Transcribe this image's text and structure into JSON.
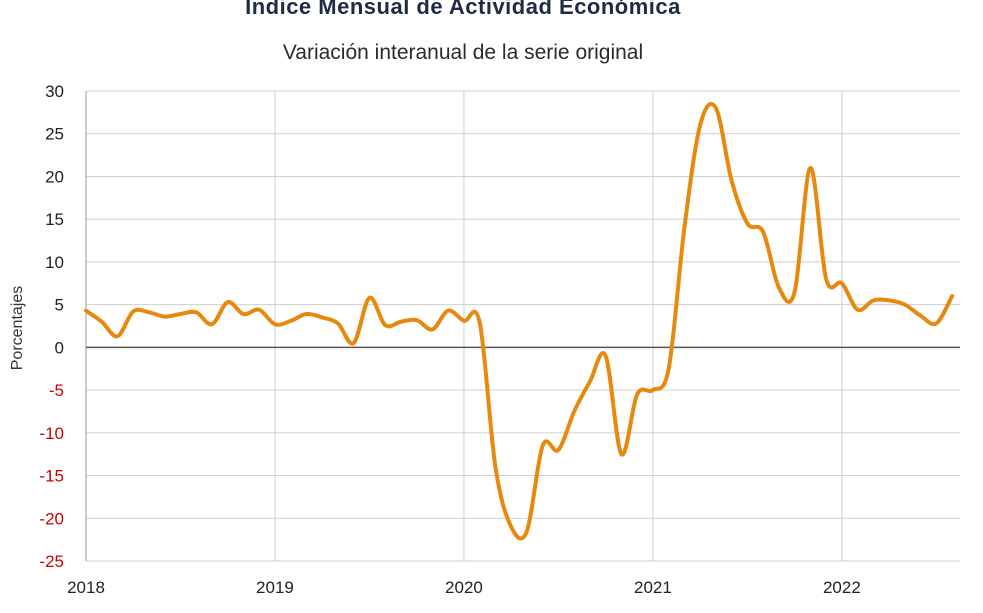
{
  "chart_data": {
    "type": "line",
    "title": "Indice Mensual de  Actividad Económica",
    "subtitle": "Variación interanual de la serie original",
    "xlabel": "",
    "ylabel": "Porcentajes",
    "ylim": [
      -25,
      30
    ],
    "yticks": [
      30,
      25,
      20,
      15,
      10,
      5,
      0,
      -5,
      -10,
      -15,
      -20,
      -25
    ],
    "xticks": [
      "2018",
      "2019",
      "2020",
      "2021",
      "2022"
    ],
    "xlim": [
      "2018-01",
      "2022-08"
    ],
    "grid": true,
    "colors": {
      "line": "#e8890f",
      "negative_tick": "#cc0000",
      "positive_tick": "#222222",
      "grid": "#cfcfcf",
      "zero_line": "#555555"
    },
    "series": [
      {
        "x": [
          "2018-01",
          "2018-02",
          "2018-03",
          "2018-04",
          "2018-05",
          "2018-06",
          "2018-07",
          "2018-08",
          "2018-09",
          "2018-10",
          "2018-11",
          "2018-12",
          "2019-01",
          "2019-02",
          "2019-03",
          "2019-04",
          "2019-05",
          "2019-06",
          "2019-07",
          "2019-08",
          "2019-09",
          "2019-10",
          "2019-11",
          "2019-12",
          "2020-01",
          "2020-02",
          "2020-03",
          "2020-04",
          "2020-05",
          "2020-06",
          "2020-07",
          "2020-08",
          "2020-09",
          "2020-10",
          "2020-11",
          "2020-12",
          "2021-01",
          "2021-02",
          "2021-03",
          "2021-04",
          "2021-05",
          "2021-06",
          "2021-07",
          "2021-08",
          "2021-09",
          "2021-10",
          "2021-11",
          "2021-12",
          "2022-01",
          "2022-02",
          "2022-03",
          "2022-04",
          "2022-05",
          "2022-06",
          "2022-07",
          "2022-08"
        ],
        "y": [
          4.3,
          3.0,
          1.3,
          4.2,
          4.1,
          3.6,
          3.9,
          4.1,
          2.7,
          5.3,
          3.9,
          4.4,
          2.7,
          3.1,
          3.9,
          3.5,
          2.8,
          0.5,
          5.8,
          2.6,
          3.0,
          3.2,
          2.1,
          4.3,
          3.1,
          2.9,
          -14.0,
          -21.0,
          -21.5,
          -11.5,
          -12.0,
          -7.5,
          -4.0,
          -1.0,
          -12.5,
          -5.5,
          -5.0,
          -2.5,
          14.0,
          26.0,
          28.0,
          19.5,
          14.5,
          13.5,
          7.0,
          6.5,
          21.0,
          8.0,
          7.5,
          4.4,
          5.5,
          5.5,
          5.0,
          3.7,
          2.8,
          6.0
        ]
      }
    ]
  }
}
